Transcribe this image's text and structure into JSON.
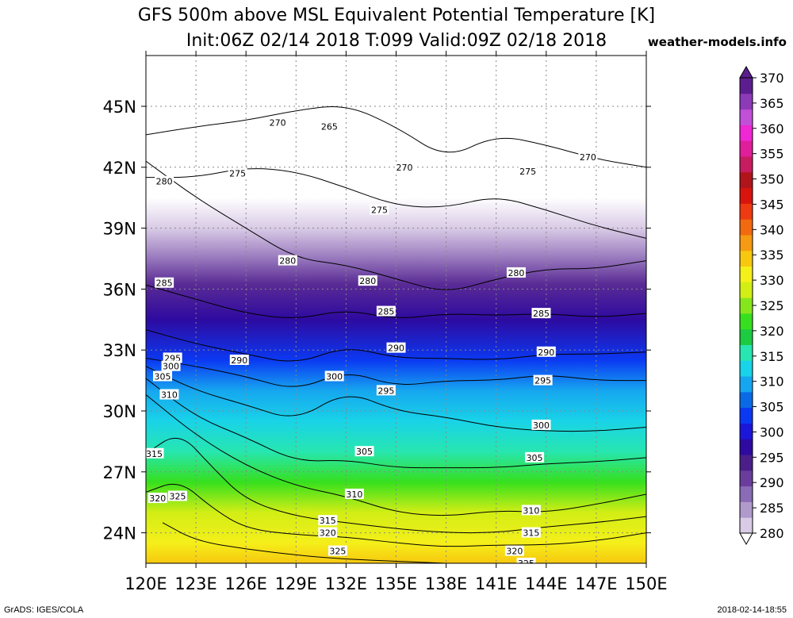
{
  "header": {
    "title_line1": "GFS 500m above MSL Equivalent Potential Temperature [K]",
    "title_line2": "Init:06Z 02/14 2018 T:099 Valid:09Z 02/18 2018",
    "site": "weather-models.info"
  },
  "footer": {
    "left": "GrADS: IGES/COLA",
    "right": "2018-02-14-18:55"
  },
  "chart_data": {
    "type": "heatmap",
    "xlim": [
      120,
      150
    ],
    "ylim": [
      22.5,
      47.5
    ],
    "x_ticks": [
      120,
      123,
      126,
      129,
      132,
      135,
      138,
      141,
      144,
      147,
      150
    ],
    "x_tick_labels": [
      "120E",
      "123E",
      "126E",
      "129E",
      "132E",
      "135E",
      "138E",
      "141E",
      "144E",
      "147E",
      "150E"
    ],
    "y_ticks": [
      24,
      27,
      30,
      33,
      36,
      39,
      42,
      45
    ],
    "y_tick_labels": [
      "24N",
      "27N",
      "30N",
      "33N",
      "36N",
      "39N",
      "42N",
      "45N"
    ],
    "grid": true,
    "contour_levels": [
      265,
      270,
      275,
      280,
      285,
      290,
      295,
      300,
      305,
      310,
      315,
      320,
      325
    ],
    "contour_lines": [
      {
        "level": 270,
        "points": [
          [
            120,
            43.6
          ],
          [
            123,
            44.0
          ],
          [
            126,
            44.3
          ],
          [
            129,
            44.8
          ],
          [
            132,
            45.1
          ],
          [
            135,
            44.0
          ],
          [
            138,
            42.4
          ],
          [
            141,
            43.6
          ],
          [
            144,
            43.1
          ],
          [
            147,
            42.4
          ],
          [
            150,
            42.0
          ]
        ]
      },
      {
        "level": 275,
        "points": [
          [
            120,
            41.5
          ],
          [
            123,
            41.5
          ],
          [
            126,
            42.0
          ],
          [
            129,
            41.8
          ],
          [
            132,
            41.0
          ],
          [
            135,
            40.1
          ],
          [
            138,
            40.0
          ],
          [
            141,
            40.6
          ],
          [
            144,
            39.9
          ],
          [
            147,
            39.1
          ],
          [
            150,
            38.5
          ]
        ]
      },
      {
        "level": 280,
        "points": [
          [
            120,
            42.3
          ],
          [
            123,
            40.5
          ],
          [
            126,
            39.0
          ],
          [
            129,
            37.5
          ],
          [
            132,
            37.2
          ],
          [
            135,
            36.5
          ],
          [
            138,
            35.8
          ],
          [
            141,
            36.5
          ],
          [
            144,
            37.0
          ],
          [
            147,
            37.0
          ],
          [
            150,
            37.4
          ]
        ]
      },
      {
        "level": 285,
        "points": [
          [
            120,
            36.2
          ],
          [
            123,
            35.5
          ],
          [
            126,
            34.8
          ],
          [
            129,
            34.5
          ],
          [
            132,
            35.0
          ],
          [
            135,
            34.5
          ],
          [
            138,
            34.8
          ],
          [
            141,
            34.7
          ],
          [
            144,
            34.8
          ],
          [
            147,
            34.6
          ],
          [
            150,
            34.8
          ]
        ]
      },
      {
        "level": 290,
        "points": [
          [
            120,
            34.0
          ],
          [
            123,
            33.3
          ],
          [
            126,
            32.8
          ],
          [
            129,
            32.3
          ],
          [
            132,
            33.2
          ],
          [
            135,
            32.6
          ],
          [
            138,
            32.6
          ],
          [
            141,
            32.5
          ],
          [
            144,
            32.8
          ],
          [
            147,
            32.8
          ],
          [
            150,
            32.9
          ]
        ]
      },
      {
        "level": 295,
        "points": [
          [
            120,
            32.6
          ],
          [
            123,
            32.2
          ],
          [
            126,
            31.7
          ],
          [
            129,
            31.0
          ],
          [
            132,
            32.0
          ],
          [
            135,
            31.2
          ],
          [
            138,
            31.5
          ],
          [
            141,
            31.5
          ],
          [
            144,
            31.8
          ],
          [
            147,
            31.5
          ],
          [
            150,
            31.5
          ]
        ]
      },
      {
        "level": 300,
        "points": [
          [
            120,
            32.2
          ],
          [
            123,
            31.0
          ],
          [
            126,
            30.3
          ],
          [
            129,
            29.5
          ],
          [
            132,
            31.0
          ],
          [
            135,
            30.0
          ],
          [
            138,
            29.7
          ],
          [
            141,
            29.2
          ],
          [
            144,
            29.0
          ],
          [
            147,
            29.0
          ],
          [
            150,
            29.2
          ]
        ]
      },
      {
        "level": 305,
        "points": [
          [
            120,
            31.6
          ],
          [
            123,
            29.7
          ],
          [
            126,
            28.7
          ],
          [
            129,
            27.5
          ],
          [
            132,
            27.6
          ],
          [
            135,
            27.2
          ],
          [
            138,
            27.2
          ],
          [
            141,
            27.2
          ],
          [
            144,
            27.4
          ],
          [
            147,
            27.5
          ],
          [
            150,
            27.7
          ]
        ]
      },
      {
        "level": 310,
        "points": [
          [
            120,
            30.8
          ],
          [
            123,
            28.8
          ],
          [
            126,
            27.3
          ],
          [
            129,
            26.3
          ],
          [
            132,
            25.8
          ],
          [
            135,
            25.0
          ],
          [
            138,
            24.8
          ],
          [
            141,
            25.1
          ],
          [
            144,
            25.0
          ],
          [
            147,
            25.4
          ],
          [
            150,
            25.9
          ]
        ]
      },
      {
        "level": 315,
        "points": [
          [
            120,
            27.9
          ],
          [
            122,
            29.0
          ],
          [
            124,
            27.2
          ],
          [
            126,
            25.6
          ],
          [
            129,
            24.8
          ],
          [
            132,
            24.5
          ],
          [
            135,
            24.2
          ],
          [
            138,
            24.0
          ],
          [
            141,
            24.0
          ],
          [
            144,
            24.3
          ],
          [
            147,
            24.5
          ],
          [
            150,
            24.8
          ]
        ]
      },
      {
        "level": 320,
        "points": [
          [
            120,
            26.0
          ],
          [
            122,
            26.6
          ],
          [
            124,
            25.2
          ],
          [
            126,
            24.2
          ],
          [
            129,
            23.9
          ],
          [
            132,
            23.8
          ],
          [
            135,
            23.5
          ],
          [
            138,
            23.3
          ],
          [
            141,
            23.4
          ],
          [
            144,
            23.4
          ],
          [
            147,
            23.6
          ],
          [
            150,
            24.0
          ]
        ]
      },
      {
        "level": 325,
        "points": [
          [
            121,
            24.5
          ],
          [
            123,
            23.6
          ],
          [
            126,
            23.2
          ],
          [
            129,
            22.9
          ],
          [
            132,
            22.7
          ],
          [
            135,
            22.6
          ],
          [
            138,
            22.5
          ]
        ]
      }
    ],
    "contour_labels": [
      {
        "text": "265",
        "lon": 131.0,
        "lat": 44.0
      },
      {
        "text": "270",
        "lon": 127.9,
        "lat": 44.2
      },
      {
        "text": "270",
        "lon": 135.5,
        "lat": 42.0
      },
      {
        "text": "270",
        "lon": 146.5,
        "lat": 42.5
      },
      {
        "text": "275",
        "lon": 125.5,
        "lat": 41.7
      },
      {
        "text": "275",
        "lon": 134.0,
        "lat": 39.9
      },
      {
        "text": "275",
        "lon": 142.9,
        "lat": 41.8
      },
      {
        "text": "280",
        "lon": 121.1,
        "lat": 41.3
      },
      {
        "text": "280",
        "lon": 128.5,
        "lat": 37.4
      },
      {
        "text": "280",
        "lon": 133.3,
        "lat": 36.4
      },
      {
        "text": "280",
        "lon": 142.2,
        "lat": 36.8
      },
      {
        "text": "285",
        "lon": 121.1,
        "lat": 36.3
      },
      {
        "text": "285",
        "lon": 134.4,
        "lat": 34.9
      },
      {
        "text": "285",
        "lon": 143.7,
        "lat": 34.8
      },
      {
        "text": "290",
        "lon": 125.6,
        "lat": 32.5
      },
      {
        "text": "290",
        "lon": 135.0,
        "lat": 33.1
      },
      {
        "text": "290",
        "lon": 144.0,
        "lat": 32.9
      },
      {
        "text": "295",
        "lon": 121.6,
        "lat": 32.6
      },
      {
        "text": "295",
        "lon": 134.4,
        "lat": 31.0
      },
      {
        "text": "295",
        "lon": 143.8,
        "lat": 31.5
      },
      {
        "text": "300",
        "lon": 121.5,
        "lat": 32.2
      },
      {
        "text": "300",
        "lon": 131.3,
        "lat": 31.7
      },
      {
        "text": "300",
        "lon": 143.7,
        "lat": 29.3
      },
      {
        "text": "305",
        "lon": 121.0,
        "lat": 31.7
      },
      {
        "text": "305",
        "lon": 133.1,
        "lat": 28.0
      },
      {
        "text": "305",
        "lon": 143.3,
        "lat": 27.7
      },
      {
        "text": "310",
        "lon": 121.4,
        "lat": 30.8
      },
      {
        "text": "310",
        "lon": 132.5,
        "lat": 25.9
      },
      {
        "text": "310",
        "lon": 143.1,
        "lat": 25.1
      },
      {
        "text": "315",
        "lon": 120.5,
        "lat": 27.9
      },
      {
        "text": "315",
        "lon": 130.9,
        "lat": 24.6
      },
      {
        "text": "315",
        "lon": 143.1,
        "lat": 24.0
      },
      {
        "text": "320",
        "lon": 120.7,
        "lat": 25.7
      },
      {
        "text": "325",
        "lon": 121.9,
        "lat": 25.8
      },
      {
        "text": "320",
        "lon": 130.9,
        "lat": 24.0
      },
      {
        "text": "325",
        "lon": 131.5,
        "lat": 23.1
      },
      {
        "text": "320",
        "lon": 142.1,
        "lat": 23.1
      },
      {
        "text": "325",
        "lon": 142.8,
        "lat": 22.5
      }
    ],
    "colorbar": {
      "levels": [
        280,
        285,
        290,
        295,
        300,
        305,
        310,
        315,
        320,
        325,
        330,
        335,
        340,
        345,
        350,
        355,
        360,
        365,
        370
      ],
      "labels": [
        "280",
        "285",
        "290",
        "295",
        "300",
        "305",
        "310",
        "315",
        "320",
        "325",
        "330",
        "335",
        "340",
        "345",
        "350",
        "355",
        "360",
        "365",
        "370"
      ],
      "colors": [
        "#d9cbe6",
        "#b09acb",
        "#8a6bb5",
        "#6a3d9c",
        "#4b1f8a",
        "#2e0aa0",
        "#1c16d9",
        "#0b39f2",
        "#0a6ae6",
        "#16a6ef",
        "#19d3e8",
        "#27e6b0",
        "#1ccb41",
        "#36e01e",
        "#86e61c",
        "#d2ee15",
        "#f5ef1a",
        "#f7c80f",
        "#f59a12",
        "#f26a0f",
        "#ed3a10",
        "#d8140f",
        "#b0151c",
        "#c81c61",
        "#e01d9a",
        "#ef27d4",
        "#c24fd8",
        "#8d3ab8",
        "#5c1e8e"
      ]
    }
  }
}
